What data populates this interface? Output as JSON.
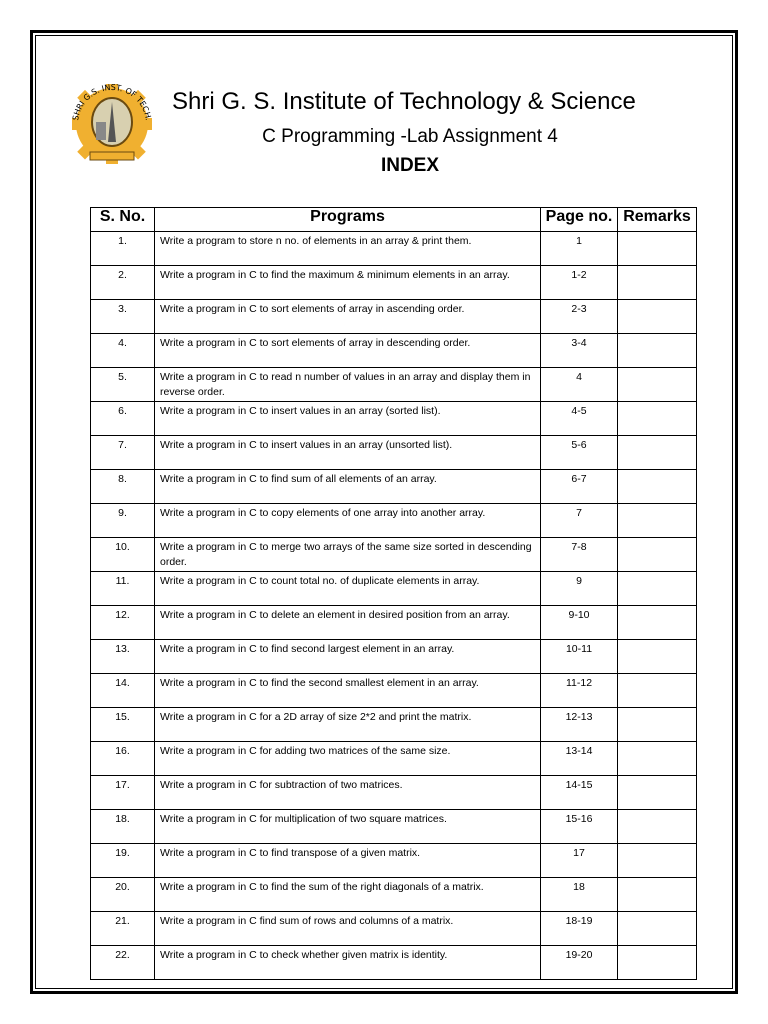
{
  "header": {
    "logo_text": "SHRI G.S. INST. OF TECH. & SCIENCE",
    "title": "Shri G. S. Institute of Technology & Science",
    "subtitle": "C Programming -Lab Assignment 4",
    "heading": "INDEX"
  },
  "colors": {
    "logo_gold": "#f0b030",
    "border": "#000000"
  },
  "table": {
    "columns": [
      "S. No.",
      "Programs",
      "Page no.",
      "Remarks"
    ],
    "rows": [
      {
        "sno": "1.",
        "program": "Write a program to store n no. of elements in an array & print them.",
        "page": "1",
        "remarks": ""
      },
      {
        "sno": "2.",
        "program": "Write a program in C to find the maximum & minimum elements in an array.",
        "page": "1-2",
        "remarks": ""
      },
      {
        "sno": "3.",
        "program": "Write a program in C to sort elements of array in ascending order.",
        "page": "2-3",
        "remarks": ""
      },
      {
        "sno": "4.",
        "program": "Write a program in C to sort elements of array in descending order.",
        "page": "3-4",
        "remarks": ""
      },
      {
        "sno": "5.",
        "program": "Write a program in C to read n number of values in an array and display them in reverse order.",
        "page": "4",
        "remarks": ""
      },
      {
        "sno": "6.",
        "program": "Write a program in C to insert values in an array (sorted list).",
        "page": "4-5",
        "remarks": ""
      },
      {
        "sno": "7.",
        "program": "Write a program in C to insert values in an array (unsorted list).",
        "page": "5-6",
        "remarks": ""
      },
      {
        "sno": "8.",
        "program": "Write a program in C to find sum of all elements of an array.",
        "page": "6-7",
        "remarks": ""
      },
      {
        "sno": "9.",
        "program": "Write a program in C to copy elements of one array into another array.",
        "page": "7",
        "remarks": ""
      },
      {
        "sno": "10.",
        "program": "Write a program in C to merge two arrays of the same size sorted in descending order.",
        "page": "7-8",
        "remarks": ""
      },
      {
        "sno": "11.",
        "program": "Write a program in C to count total no. of duplicate elements in array.",
        "page": "9",
        "remarks": ""
      },
      {
        "sno": "12.",
        "program": "Write a program in C to delete an element in desired position from an array.",
        "page": "9-10",
        "remarks": ""
      },
      {
        "sno": "13.",
        "program": "Write a program in C to find second largest element in an array.",
        "page": "10-11",
        "remarks": ""
      },
      {
        "sno": "14.",
        "program": "Write a program in C to find the second smallest element in an array.",
        "page": "11-12",
        "remarks": ""
      },
      {
        "sno": "15.",
        "program": "Write a program in C for a 2D array of size 2*2 and print the matrix.",
        "page": "12-13",
        "remarks": ""
      },
      {
        "sno": "16.",
        "program": "Write a program in C for adding two matrices of the same size.",
        "page": "13-14",
        "remarks": ""
      },
      {
        "sno": "17.",
        "program": "Write a program in C for subtraction of two matrices.",
        "page": "14-15",
        "remarks": ""
      },
      {
        "sno": "18.",
        "program": "Write a program in C for multiplication of two square matrices.",
        "page": "15-16",
        "remarks": ""
      },
      {
        "sno": "19.",
        "program": "Write a program in C to find transpose of a given matrix.",
        "page": "17",
        "remarks": ""
      },
      {
        "sno": "20.",
        "program": "Write a program in C to find the sum of the right diagonals of a matrix.",
        "page": "18",
        "remarks": ""
      },
      {
        "sno": "21.",
        "program": "Write a program in C find sum of rows and columns of a matrix.",
        "page": "18-19",
        "remarks": ""
      },
      {
        "sno": "22.",
        "program": "Write a program in C to check whether given matrix is identity.",
        "page": "19-20",
        "remarks": ""
      }
    ]
  }
}
